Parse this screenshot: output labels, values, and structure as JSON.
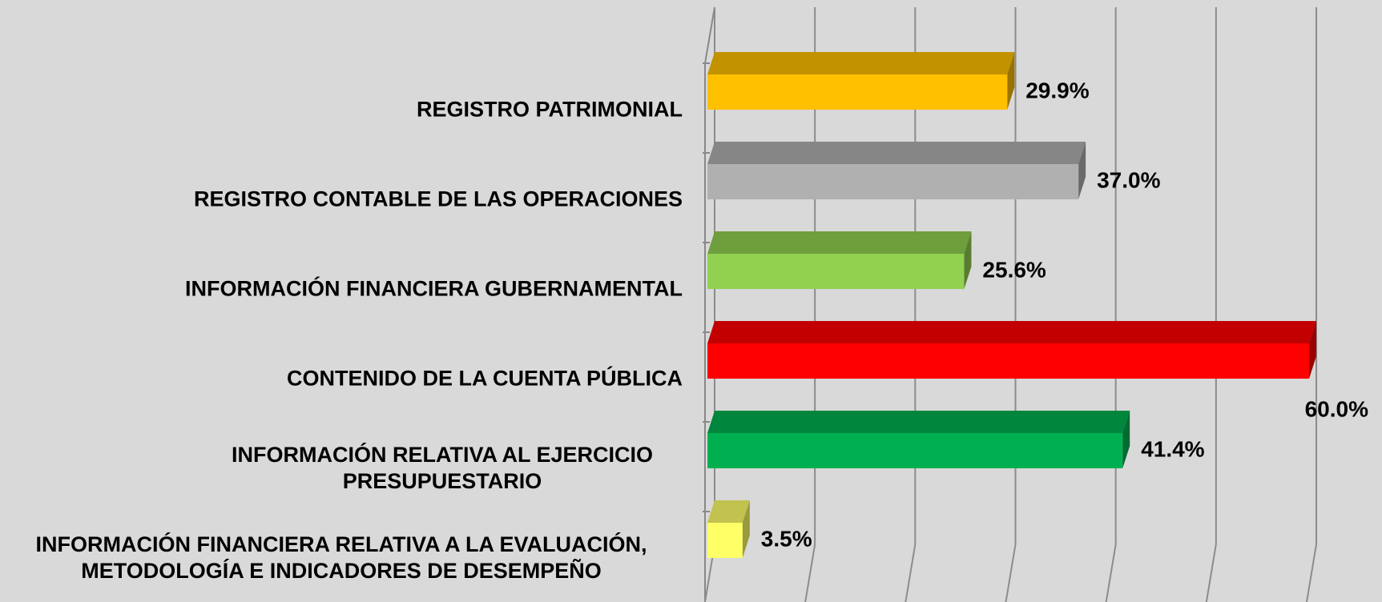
{
  "chart_data": {
    "type": "bar3d-horizontal",
    "categories": [
      "REGISTRO PATRIMONIAL",
      "REGISTRO CONTABLE DE LAS OPERACIONES",
      "INFORMACIÓN FINANCIERA GUBERNAMENTAL",
      "CONTENIDO DE LA CUENTA PÚBLICA",
      "INFORMACIÓN RELATIVA AL EJERCICIO PRESUPUESTARIO",
      "INFORMACIÓN FINANCIERA RELATIVA A LA EVALUACIÓN, METODOLOGÍA E INDICADORES DE DESEMPEÑO"
    ],
    "values": [
      29.9,
      37.0,
      25.6,
      60.0,
      41.4,
      3.5
    ],
    "value_labels": [
      "29.9%",
      "37.0%",
      "25.6%",
      "60.0%",
      "41.4%",
      "3.5%"
    ],
    "colors": [
      "#ffc000",
      "#b0b0b0",
      "#92d050",
      "#ff0000",
      "#00b050",
      "#ffff66"
    ],
    "xlim": [
      0,
      60
    ],
    "xticks": [
      0,
      10,
      20,
      30,
      40,
      50,
      60
    ],
    "grid": true
  }
}
